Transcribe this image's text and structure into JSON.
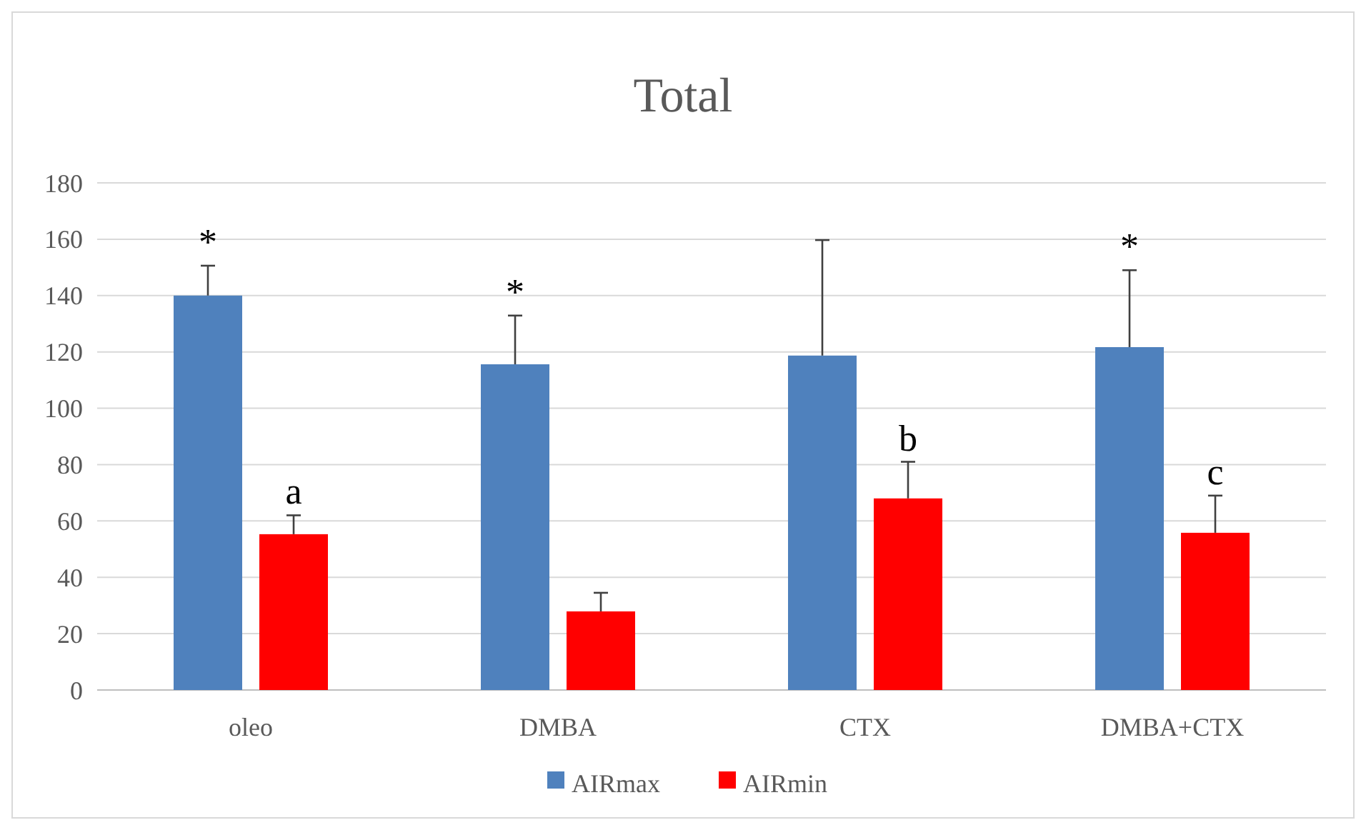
{
  "chart_data": {
    "type": "bar",
    "title": "Total",
    "categories": [
      "oleo",
      "DMBA",
      "CTX",
      "DMBA+CTX"
    ],
    "series": [
      {
        "name": "AIRmax",
        "color": "#4f81bd",
        "values": [
          140,
          115.6,
          118.7,
          121.7
        ],
        "value_labels": [
          "*",
          "*",
          null,
          "*"
        ],
        "errors": [
          [
            140,
            150.6
          ],
          [
            115.6,
            132.9
          ],
          [
            118.7,
            159.7
          ],
          [
            121.7,
            149
          ]
        ]
      },
      {
        "name": "AIRmin",
        "color": "#ff0000",
        "values": [
          55.3,
          27.9,
          68,
          55.8
        ],
        "value_labels": [
          "a",
          null,
          "b",
          "c"
        ],
        "errors": [
          [
            55.3,
            62
          ],
          [
            27.9,
            34.5
          ],
          [
            68,
            81
          ],
          [
            55.8,
            69
          ]
        ]
      }
    ],
    "ylim": [
      0,
      180
    ],
    "yticks": [
      0,
      20,
      40,
      60,
      80,
      100,
      120,
      140,
      160,
      180
    ],
    "grid": "y",
    "legend": "bottom"
  }
}
